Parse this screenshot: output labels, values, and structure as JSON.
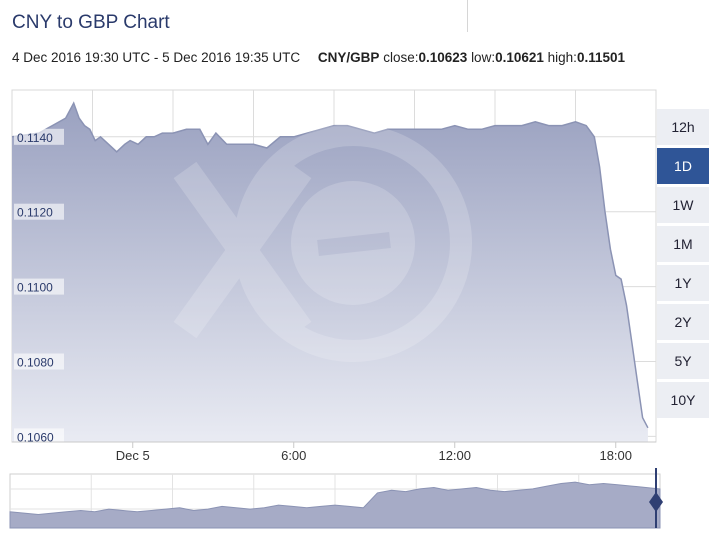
{
  "header": {
    "title": "CNY to GBP Chart",
    "range_text": "4 Dec 2016 19:30 UTC - 5 Dec 2016 19:35 UTC",
    "pair": "CNY/GBP",
    "close_label": "close:",
    "close_value": "0.10623",
    "low_label": "low:",
    "low_value": "0.10621",
    "high_label": "high:",
    "high_value": "0.11501"
  },
  "range_buttons": [
    {
      "label": "12h",
      "active": false
    },
    {
      "label": "1D",
      "active": true
    },
    {
      "label": "1W",
      "active": false
    },
    {
      "label": "1M",
      "active": false
    },
    {
      "label": "1Y",
      "active": false
    },
    {
      "label": "2Y",
      "active": false
    },
    {
      "label": "5Y",
      "active": false
    },
    {
      "label": "10Y",
      "active": false
    }
  ],
  "colors": {
    "line": "#8b93b4",
    "fill_top": "#9aa1c0",
    "fill_bottom": "#e9ebf3",
    "active": "#2f5597",
    "grid": "#dcdcdc"
  },
  "watermark_icon": "xe-logo-icon",
  "chart_data": {
    "type": "area",
    "title": "CNY to GBP Chart",
    "x_unit": "hours since 19:30 UTC 4 Dec 2016",
    "x_ticks": [
      {
        "x": 4.5,
        "label": "Dec 5"
      },
      {
        "x": 10.5,
        "label": "6:00"
      },
      {
        "x": 16.5,
        "label": "12:00"
      },
      {
        "x": 22.5,
        "label": "18:00"
      }
    ],
    "xlim": [
      0,
      24
    ],
    "y_ticks": [
      0.106,
      0.108,
      0.11,
      0.112,
      0.114
    ],
    "y_tick_labels": [
      "0.1060",
      "0.1080",
      "0.1100",
      "0.1120",
      "0.1140"
    ],
    "ylim": [
      0.10585,
      0.11525
    ],
    "grid": true,
    "series": [
      {
        "name": "CNY/GBP",
        "x": [
          0,
          1.0,
          1.5,
          2.0,
          2.3,
          2.5,
          2.7,
          2.9,
          3.1,
          3.3,
          3.6,
          3.9,
          4.2,
          4.4,
          4.7,
          5.0,
          5.3,
          5.6,
          6.0,
          6.5,
          7.0,
          7.3,
          7.6,
          8.0,
          8.5,
          9.0,
          9.5,
          10.0,
          10.5,
          11.0,
          11.5,
          12.0,
          12.5,
          13.0,
          13.5,
          14.0,
          14.5,
          15.0,
          15.5,
          16.0,
          16.5,
          17.0,
          17.5,
          18.0,
          18.5,
          19.0,
          19.5,
          20.0,
          20.5,
          21.0,
          21.4,
          21.7,
          21.9,
          22.1,
          22.3,
          22.5,
          22.7,
          22.9,
          23.1,
          23.3,
          23.5,
          23.7
        ],
        "values": [
          0.114,
          0.1141,
          0.1143,
          0.1145,
          0.1149,
          0.1145,
          0.1143,
          0.1142,
          0.1139,
          0.114,
          0.1138,
          0.1136,
          0.1138,
          0.1139,
          0.1138,
          0.114,
          0.114,
          0.1141,
          0.1141,
          0.1142,
          0.1142,
          0.1138,
          0.1141,
          0.1138,
          0.1138,
          0.1138,
          0.1137,
          0.114,
          0.114,
          0.1141,
          0.1142,
          0.1143,
          0.1143,
          0.1142,
          0.1141,
          0.1142,
          0.1142,
          0.1142,
          0.1142,
          0.1142,
          0.1143,
          0.1142,
          0.1142,
          0.1143,
          0.1143,
          0.1143,
          0.1144,
          0.1143,
          0.1143,
          0.1144,
          0.1143,
          0.114,
          0.1132,
          0.112,
          0.111,
          0.1103,
          0.1102,
          0.1095,
          0.1085,
          0.1075,
          0.1065,
          0.10623
        ]
      }
    ],
    "navigator": {
      "values": [
        0.1112,
        0.1111,
        0.111,
        0.1111,
        0.1112,
        0.1113,
        0.1112,
        0.1114,
        0.1113,
        0.1112,
        0.1113,
        0.1114,
        0.1115,
        0.1113,
        0.1114,
        0.1116,
        0.1115,
        0.1114,
        0.1115,
        0.1117,
        0.1116,
        0.1115,
        0.1116,
        0.1117,
        0.1116,
        0.1115,
        0.1126,
        0.1128,
        0.1127,
        0.1129,
        0.113,
        0.1128,
        0.1129,
        0.113,
        0.1128,
        0.1127,
        0.1128,
        0.1129,
        0.1131,
        0.1133,
        0.1134,
        0.1132,
        0.1133,
        0.1132,
        0.1131,
        0.113,
        0.1129
      ]
    }
  }
}
